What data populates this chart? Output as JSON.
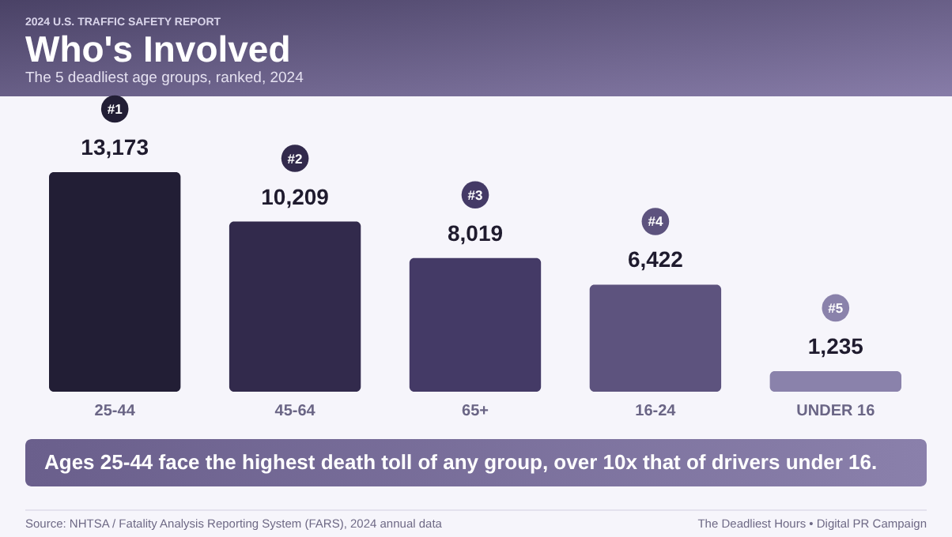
{
  "chart_data": {
    "type": "bar",
    "title": "Who's Involved",
    "subtitle": "The 5 deadliest age groups, ranked, 2024",
    "categories": [
      "25-44",
      "45-64",
      "65+",
      "16-24",
      "UNDER 16"
    ],
    "values": [
      13173,
      10209,
      8019,
      6422,
      1235
    ],
    "colors": [
      "#221e35",
      "#322a4c",
      "#443a66",
      "#5d537e",
      "#8a82ab"
    ],
    "value_labels": [
      "13,173",
      "10,209",
      "8,019",
      "6,422",
      "1,235"
    ],
    "annotations": [
      "2024 U.S. TRAFFIC SAFETY REPORT",
      "Ages 25-44 face the highest death toll of any group, over 10x that of drivers under 16.",
      "Source: NHTSA / Fatality Analysis Reporting System (FARS), 2024 annual data",
      "The Deadliest Hours • Digital PR Campaign",
      "#1",
      "#2",
      "#3",
      "#4",
      "#5"
    ]
  }
}
